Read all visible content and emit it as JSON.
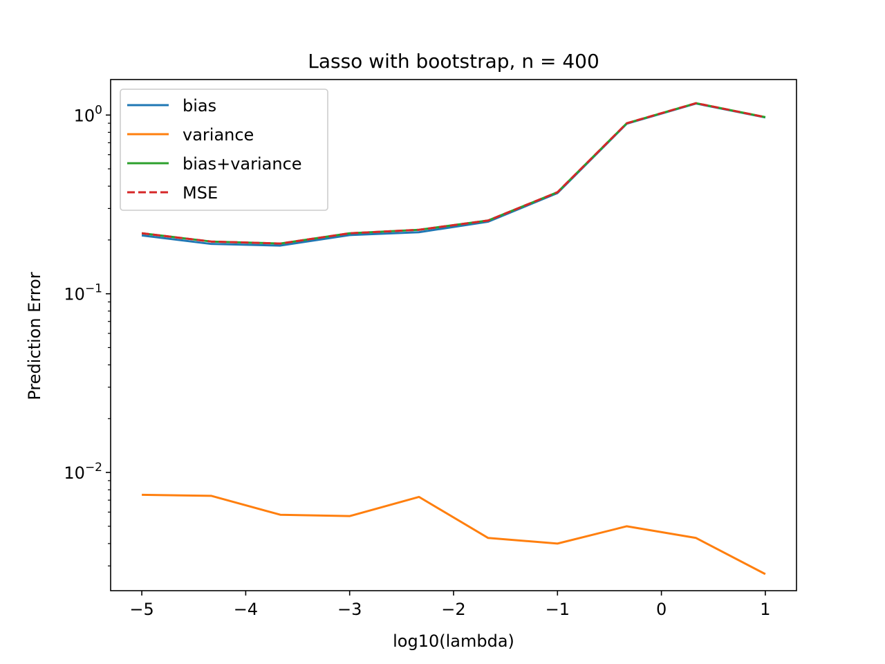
{
  "chart_data": {
    "type": "line",
    "title": "Lasso with bootstrap, n = 400",
    "xlabel": "log10(lambda)",
    "ylabel": "Prediction Error",
    "yscale": "log",
    "xlim": [
      -5.3,
      1.3
    ],
    "ylim": [
      0.00218,
      1.58
    ],
    "xticks": [
      {
        "value": -5,
        "label": "−5"
      },
      {
        "value": -4,
        "label": "−4"
      },
      {
        "value": -3,
        "label": "−3"
      },
      {
        "value": -2,
        "label": "−2"
      },
      {
        "value": -1,
        "label": "−1"
      },
      {
        "value": 0,
        "label": "0"
      },
      {
        "value": 1,
        "label": "1"
      }
    ],
    "yticks": [
      {
        "value": 0.01,
        "base": "10",
        "exp": "−2"
      },
      {
        "value": 0.1,
        "base": "10",
        "exp": "−1"
      },
      {
        "value": 1,
        "base": "10",
        "exp": "0"
      }
    ],
    "x": [
      -5,
      -4.333,
      -3.667,
      -3,
      -2.333,
      -1.667,
      -1,
      -0.333,
      0.333,
      1
    ],
    "series": [
      {
        "name": "bias",
        "color": "#1f77b4",
        "dash": "solid",
        "values": [
          0.212,
          0.19,
          0.186,
          0.213,
          0.221,
          0.253,
          0.366,
          0.895,
          1.16,
          0.97
        ]
      },
      {
        "name": "variance",
        "color": "#ff7f0e",
        "dash": "solid",
        "values": [
          0.0075,
          0.0074,
          0.0058,
          0.0057,
          0.0073,
          0.0043,
          0.004,
          0.005,
          0.0043,
          0.0027
        ]
      },
      {
        "name": "bias+variance",
        "color": "#2ca02c",
        "dash": "solid",
        "values": [
          0.218,
          0.196,
          0.191,
          0.218,
          0.228,
          0.257,
          0.37,
          0.9,
          1.165,
          0.973
        ]
      },
      {
        "name": "MSE",
        "color": "#d62728",
        "dash": "dashed",
        "values": [
          0.218,
          0.196,
          0.191,
          0.218,
          0.228,
          0.257,
          0.37,
          0.9,
          1.165,
          0.973
        ]
      }
    ],
    "legend_position": "upper-left",
    "grid": false
  }
}
